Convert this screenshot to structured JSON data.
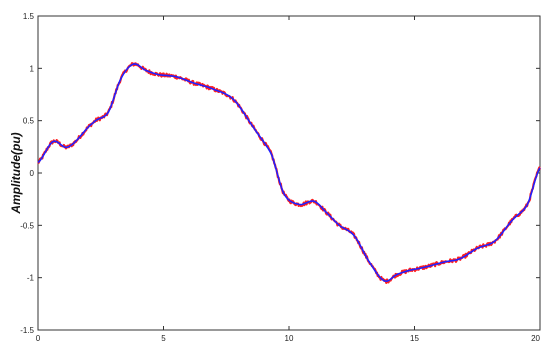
{
  "chart_data": {
    "type": "line",
    "ylabel": "Amplitude(pu)",
    "xlabel": "",
    "title": "",
    "xlim": [
      0,
      20
    ],
    "ylim": [
      -1.5,
      1.5
    ],
    "x_ticks": [
      "0",
      "5",
      "10",
      "15",
      "20"
    ],
    "y_ticks": [
      "1.5",
      "1",
      "0.5",
      "0",
      "-0.5",
      "-1",
      "-1.5"
    ],
    "grid": false,
    "legend": "none",
    "series": [
      {
        "color": "#ff2020",
        "style": "noisy",
        "x": [
          0,
          0.6,
          1.2,
          2.2,
          2.8,
          3.3,
          3.8,
          4.3,
          4.8,
          5.5,
          6.2,
          7.0,
          7.8,
          8.6,
          9.3,
          9.8,
          10.4,
          11.0,
          11.5,
          12.0,
          12.6,
          13.2,
          13.8,
          14.3,
          14.8,
          15.4,
          16.2,
          16.8,
          17.5,
          18.2,
          18.9,
          19.5,
          20.0
        ],
        "y": [
          0.1,
          0.3,
          0.25,
          0.48,
          0.58,
          0.9,
          1.04,
          0.98,
          0.94,
          0.92,
          0.86,
          0.8,
          0.7,
          0.43,
          0.18,
          -0.2,
          -0.3,
          -0.27,
          -0.38,
          -0.5,
          -0.6,
          -0.85,
          -1.03,
          -0.97,
          -0.93,
          -0.9,
          -0.85,
          -0.82,
          -0.72,
          -0.65,
          -0.45,
          -0.3,
          0.05
        ]
      },
      {
        "color": "#2020ff",
        "style": "smooth",
        "x": [
          0,
          0.6,
          1.2,
          2.2,
          2.8,
          3.3,
          3.8,
          4.3,
          4.8,
          5.5,
          6.2,
          7.0,
          7.8,
          8.6,
          9.3,
          9.8,
          10.4,
          11.0,
          11.5,
          12.0,
          12.6,
          13.2,
          13.8,
          14.3,
          14.8,
          15.4,
          16.2,
          16.8,
          17.5,
          18.2,
          18.9,
          19.5,
          20.0
        ],
        "y": [
          0.1,
          0.3,
          0.25,
          0.48,
          0.58,
          0.9,
          1.04,
          0.98,
          0.94,
          0.92,
          0.86,
          0.8,
          0.7,
          0.43,
          0.18,
          -0.2,
          -0.3,
          -0.27,
          -0.38,
          -0.5,
          -0.6,
          -0.85,
          -1.03,
          -0.97,
          -0.93,
          -0.9,
          -0.85,
          -0.82,
          -0.72,
          -0.65,
          -0.45,
          -0.3,
          0.05
        ]
      }
    ]
  }
}
